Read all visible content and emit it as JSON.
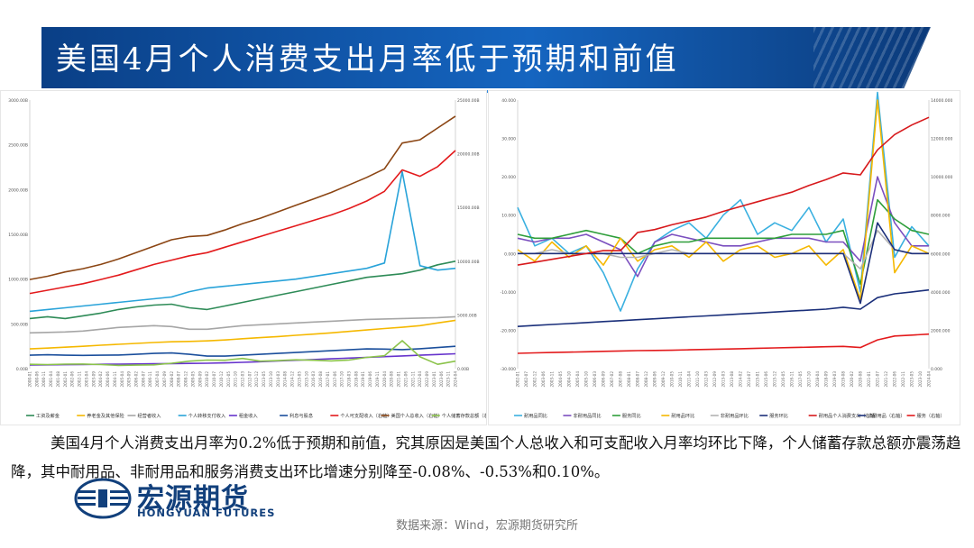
{
  "title": "美国4月个人消费支出月率低于预期和前值",
  "description": "美国4月个人消费支出月率为0.2%低于预期和前值，究其原因是美国个人总收入和可支配收入月率均环比下降，个人储蓄存款总额亦震荡趋降，其中耐用品、非耐用品和服务消费支出环比增速分别降至-0.08%、-0.53%和0.10%。",
  "source": "数据来源：Wind，宏源期货研究所",
  "logo": {
    "cn": "宏源期货",
    "en": "HONGYUAN FUTURES"
  },
  "colors": {
    "title_bg": "#1565c0",
    "brand": "#12407c"
  },
  "chart_data": [
    {
      "type": "line",
      "left_ticks": [
        "0.00B",
        "500.00B",
        "1000.00B",
        "1500.00B",
        "2000.00B",
        "2500.00B",
        "3000.00B"
      ],
      "right_ticks": [
        "0.00B",
        "5000.00B",
        "10000.00B",
        "15000.00B",
        "20000.00B",
        "25000.00B"
      ],
      "ylim_left": [
        0,
        3000
      ],
      "ylim_right": [
        0,
        25000
      ],
      "x_range": [
        "2000-01",
        "2024-04"
      ],
      "legend": [
        "工资及薪金",
        "养老金及其他保险",
        "经营者收入",
        "个人转移支付收入",
        "租金收入",
        "利息与股息",
        "个人可支配收入（右轴）",
        "美国个人总收入（右轴）",
        "个人储蓄存款总额（右轴）"
      ],
      "series": [
        {
          "name": "工资及薪金",
          "color": "#2e8b57",
          "axis": "left",
          "values": [
            560,
            580,
            560,
            590,
            620,
            660,
            690,
            710,
            720,
            680,
            660,
            700,
            740,
            780,
            820,
            860,
            900,
            940,
            980,
            1020,
            1040,
            1060,
            1100,
            1160,
            1200
          ]
        },
        {
          "name": "养老金及其他保险",
          "color": "#f5b800",
          "axis": "left",
          "values": [
            220,
            230,
            240,
            250,
            262,
            272,
            282,
            292,
            300,
            304,
            310,
            320,
            334,
            346,
            358,
            372,
            386,
            400,
            416,
            432,
            448,
            462,
            480,
            510,
            540
          ]
        },
        {
          "name": "经营者收入",
          "color": "#a6a6a6",
          "axis": "left",
          "values": [
            400,
            405,
            410,
            420,
            440,
            460,
            470,
            480,
            470,
            440,
            440,
            460,
            480,
            490,
            500,
            510,
            520,
            530,
            540,
            550,
            555,
            560,
            565,
            570,
            580
          ]
        },
        {
          "name": "个人转移支付收入",
          "color": "#29a3d9",
          "axis": "left",
          "values": [
            640,
            660,
            680,
            700,
            720,
            740,
            760,
            780,
            800,
            860,
            900,
            920,
            940,
            960,
            980,
            1000,
            1030,
            1060,
            1090,
            1120,
            1180,
            2200,
            1150,
            1100,
            1120
          ]
        },
        {
          "name": "租金收入",
          "color": "#6633cc",
          "axis": "left",
          "values": [
            40,
            42,
            44,
            46,
            48,
            50,
            52,
            54,
            56,
            58,
            60,
            64,
            70,
            78,
            86,
            94,
            102,
            110,
            118,
            126,
            134,
            142,
            150,
            158,
            166
          ]
        },
        {
          "name": "利息与股息",
          "color": "#1b4f9c",
          "axis": "left",
          "values": [
            150,
            155,
            150,
            148,
            150,
            152,
            160,
            170,
            175,
            160,
            140,
            140,
            150,
            160,
            170,
            180,
            190,
            200,
            210,
            220,
            218,
            212,
            222,
            236,
            250
          ]
        },
        {
          "name": "个人可支配收入（右轴）",
          "color": "#e31a1c",
          "axis": "right",
          "values": [
            7000,
            7300,
            7600,
            7900,
            8300,
            8700,
            9200,
            9700,
            10100,
            10500,
            10800,
            11300,
            11800,
            12300,
            12800,
            13300,
            13800,
            14300,
            14900,
            15600,
            16500,
            18500,
            17900,
            18800,
            20300
          ]
        },
        {
          "name": "美国个人总收入（右轴）",
          "color": "#8b4513",
          "axis": "right",
          "values": [
            8300,
            8600,
            9000,
            9300,
            9700,
            10200,
            10800,
            11400,
            12000,
            12300,
            12400,
            12900,
            13500,
            14000,
            14600,
            15200,
            15800,
            16400,
            17100,
            17800,
            18600,
            21000,
            21300,
            22400,
            23500
          ]
        },
        {
          "name": "个人储蓄存款总额（右轴）",
          "color": "#8bc34a",
          "axis": "right",
          "values": [
            400,
            380,
            420,
            430,
            380,
            300,
            330,
            350,
            500,
            700,
            800,
            780,
            950,
            700,
            750,
            820,
            780,
            720,
            800,
            1050,
            1200,
            2600,
            1100,
            400,
            700
          ]
        }
      ]
    },
    {
      "type": "line",
      "left_ticks": [
        "-30.000",
        "-20.000",
        "-10.000",
        "0.000",
        "10.000",
        "20.000",
        "30.000",
        "40.000"
      ],
      "right_ticks": [
        "0.000",
        "2000.000",
        "4000.000",
        "6000.000",
        "8000.000",
        "10000.000",
        "12000.000",
        "14000.000"
      ],
      "ylim_left": [
        -30,
        40
      ],
      "ylim_right": [
        0,
        14000
      ],
      "x_range": [
        "2002-01",
        "2024-04"
      ],
      "legend": [
        "耐用品同比",
        "非耐用品同比",
        "服务同比",
        "耐用品环比",
        "非耐用品环比",
        "服务环比",
        "耐用品个人消费支出（右轴）",
        "非耐用品（右轴）",
        "服务（右轴）"
      ],
      "series": [
        {
          "name": "耐用品同比",
          "color": "#3ab0e0",
          "axis": "left",
          "values": [
            12,
            2,
            4,
            0,
            2,
            -5,
            -15,
            -4,
            3,
            6,
            8,
            4,
            10,
            14,
            5,
            8,
            6,
            12,
            3,
            9,
            -10,
            42,
            -1,
            7,
            2
          ]
        },
        {
          "name": "非耐用品同比",
          "color": "#7b4fbf",
          "axis": "left",
          "values": [
            4,
            3,
            4,
            4,
            5,
            3,
            1,
            -6,
            3,
            5,
            4,
            3,
            2,
            2,
            3,
            4,
            4,
            4,
            3,
            3,
            -2,
            20,
            8,
            2,
            2
          ]
        },
        {
          "name": "服务同比",
          "color": "#2e9e3a",
          "axis": "left",
          "values": [
            5,
            4,
            4,
            5,
            6,
            5,
            4,
            0,
            2,
            3,
            3,
            4,
            4,
            4,
            4,
            4,
            5,
            5,
            5,
            6,
            -8,
            14,
            9,
            6,
            5
          ]
        },
        {
          "name": "耐用品环比",
          "color": "#f5b800",
          "axis": "left",
          "values": [
            1,
            -2,
            3,
            -1,
            2,
            -3,
            4,
            -2,
            1,
            2,
            -1,
            3,
            -2,
            1,
            2,
            -1,
            0,
            2,
            -3,
            1,
            -12,
            40,
            -5,
            2,
            0
          ]
        },
        {
          "name": "非耐用品环比",
          "color": "#b3b3b3",
          "axis": "left",
          "values": [
            0,
            0,
            1,
            0,
            0,
            0,
            -1,
            -1,
            0,
            1,
            0,
            0,
            0,
            0,
            0,
            0,
            0,
            0,
            0,
            0,
            -4,
            6,
            1,
            0,
            0
          ]
        },
        {
          "name": "服务环比",
          "color": "#1c2f7a",
          "axis": "left",
          "values": [
            0,
            0,
            0,
            0,
            0,
            0,
            0,
            0,
            0,
            0,
            0,
            0,
            0,
            0,
            0,
            0,
            0,
            0,
            0,
            0,
            -13,
            8,
            1,
            0,
            0
          ]
        },
        {
          "name": "耐用品个人消费支出（右轴）",
          "color": "#d7191c",
          "axis": "right",
          "values": [
            5400,
            5550,
            5700,
            5850,
            6000,
            6150,
            6150,
            7100,
            7250,
            7500,
            7700,
            7900,
            8200,
            8450,
            8700,
            8950,
            9200,
            9550,
            9850,
            10200,
            10100,
            11400,
            12200,
            12700,
            13100
          ]
        },
        {
          "name": "非耐用品（右轴）",
          "color": "#1a2f7a",
          "axis": "right",
          "values": [
            2200,
            2250,
            2300,
            2350,
            2400,
            2450,
            2500,
            2550,
            2600,
            2650,
            2700,
            2750,
            2800,
            2850,
            2900,
            2950,
            3000,
            3050,
            3100,
            3200,
            3100,
            3700,
            3900,
            4000,
            4100
          ]
        },
        {
          "name": "服务（右轴）",
          "color": "#e31a1c",
          "axis": "right",
          "values": [
            800,
            820,
            840,
            860,
            880,
            900,
            920,
            940,
            950,
            960,
            980,
            1000,
            1020,
            1040,
            1060,
            1080,
            1100,
            1120,
            1140,
            1160,
            1100,
            1500,
            1700,
            1750,
            1800
          ]
        }
      ]
    }
  ]
}
